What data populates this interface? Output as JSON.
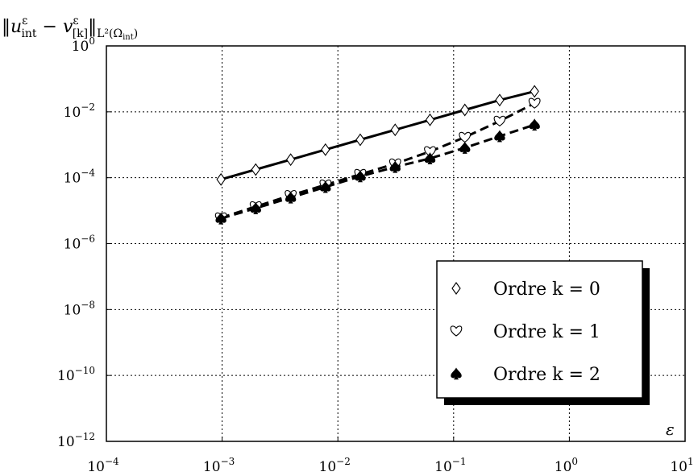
{
  "chart_data": {
    "type": "scatter",
    "title": "",
    "ylabel": "‖u^ε_int − v^ε_[k]‖_L²(Ω_int)",
    "xlabel": "ε",
    "xscale": "log",
    "yscale": "log",
    "xlim": [
      0.0001,
      10
    ],
    "ylim": [
      1e-12,
      1
    ],
    "grid": true,
    "legend_position": "bottom-right",
    "x_ticks": [
      {
        "base": "10",
        "exp": "−4"
      },
      {
        "base": "10",
        "exp": "−3"
      },
      {
        "base": "10",
        "exp": "−2"
      },
      {
        "base": "10",
        "exp": "−1"
      },
      {
        "base": "10",
        "exp": "0"
      },
      {
        "base": "10",
        "exp": "1"
      }
    ],
    "y_ticks": [
      {
        "base": "10",
        "exp": "−12"
      },
      {
        "base": "10",
        "exp": "−10"
      },
      {
        "base": "10",
        "exp": "−8"
      },
      {
        "base": "10",
        "exp": "−6"
      },
      {
        "base": "10",
        "exp": "−4"
      },
      {
        "base": "10",
        "exp": "−2"
      },
      {
        "base": "10",
        "exp": "0"
      }
    ],
    "series": [
      {
        "name": "Ordre k = 0",
        "marker": "diamond",
        "line": "solid",
        "x": [
          0.000977,
          0.00195,
          0.00391,
          0.00781,
          0.0156,
          0.03125,
          0.0625,
          0.125,
          0.25,
          0.5
        ],
        "y": [
          8.88e-05,
          0.000177,
          0.000355,
          0.00071,
          0.00142,
          0.00284,
          0.00569,
          0.0114,
          0.0227,
          0.0418
        ]
      },
      {
        "name": "Ordre k = 1",
        "marker": "heart",
        "line": "dashed",
        "x": [
          0.000977,
          0.00195,
          0.00391,
          0.00781,
          0.0156,
          0.03125,
          0.0625,
          0.125,
          0.25,
          0.5
        ],
        "y": [
          6.1e-06,
          1.33e-05,
          2.91e-05,
          6.08e-05,
          0.000127,
          0.000265,
          0.000625,
          0.00169,
          0.00523,
          0.0182
        ]
      },
      {
        "name": "Ordre k = 2",
        "marker": "spade",
        "line": "dashed",
        "x": [
          0.000977,
          0.00195,
          0.00391,
          0.00781,
          0.0156,
          0.03125,
          0.0625,
          0.125,
          0.25,
          0.5
        ],
        "y": [
          5.8e-06,
          1.18e-05,
          2.49e-05,
          5.22e-05,
          0.00011,
          0.000212,
          0.000385,
          0.000808,
          0.00182,
          0.00406
        ]
      }
    ]
  }
}
